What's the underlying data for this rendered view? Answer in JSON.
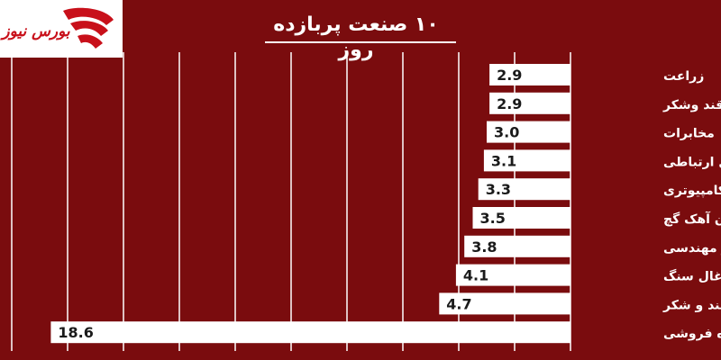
{
  "title": "۱۰ صنعت پربازده روز",
  "logo": {
    "text": "بورس نیوز",
    "icon": "bourse-news-logo-icon"
  },
  "colors": {
    "background": "#7a0c0e",
    "bar": "#ffffff",
    "text": "#ffffff",
    "value_text": "#1a1a1a",
    "grid": "#ffffff",
    "logo_red": "#c8101a"
  },
  "chart_data": {
    "type": "bar",
    "orientation": "horizontal",
    "direction": "right-to-left",
    "title": "۱۰ صنعت پربازده روز",
    "categories": [
      "زراعت",
      "غذایی بجز قند وشکر",
      "مخابرات",
      "وسایل ارتباطی",
      "محصولات کامپیوتری",
      "سیمان آهک گچ",
      "فنی و مهندسی",
      "استخراج زغال سنگ",
      "قند و شکر",
      "عمده فروشی"
    ],
    "values": [
      2.9,
      2.9,
      3.0,
      3.1,
      3.3,
      3.5,
      3.8,
      4.1,
      4.7,
      18.6
    ],
    "value_labels": [
      "2.9",
      "2.9",
      "3.0",
      "3.1",
      "3.3",
      "3.5",
      "3.8",
      "4.1",
      "4.7",
      "18.6"
    ],
    "xlim": [
      0,
      20
    ],
    "grid": true,
    "legend": "none"
  }
}
